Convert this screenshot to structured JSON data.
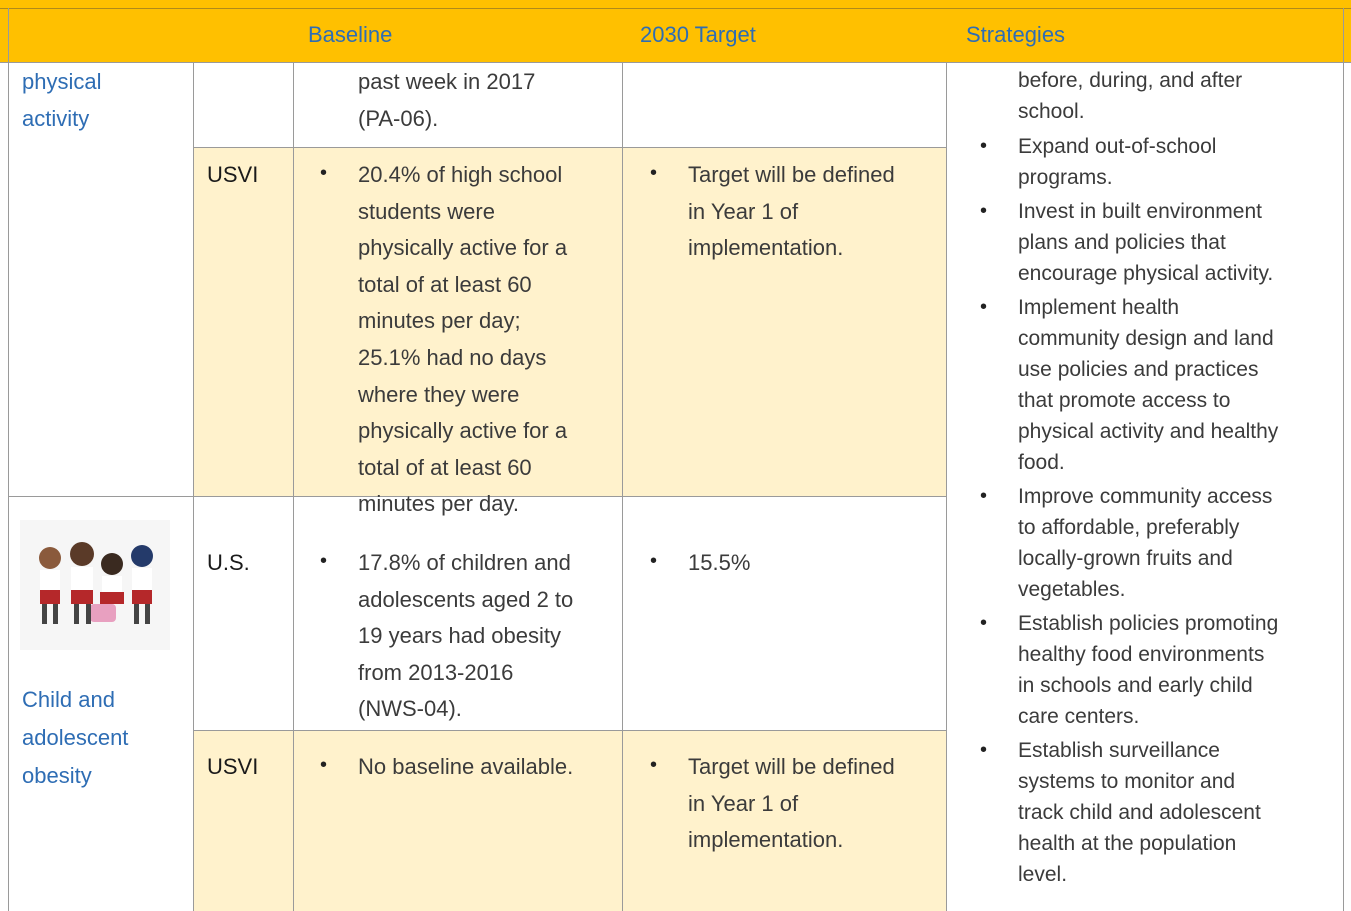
{
  "table": {
    "header": {
      "baseline": "Baseline",
      "target": "2030 Target",
      "strategies": "Strategies"
    },
    "sections": [
      {
        "topic": [
          "physical",
          "activity"
        ],
        "rows": [
          {
            "baseline_continued": [
              "past week in 2017",
              "(PA-06)."
            ]
          },
          {
            "region": "USVI",
            "baseline": [
              [
                "20.4% of high school",
                "students were",
                "physically active for a",
                "total of at least 60",
                "minutes per day;",
                "25.1% had no days",
                "where they were",
                "physically active for a",
                "total of at least 60",
                "minutes per day."
              ]
            ],
            "target": [
              [
                "Target will be defined",
                "in Year 1 of",
                "implementation."
              ]
            ]
          }
        ]
      },
      {
        "topic": [
          "Child and",
          "adolescent",
          "obesity"
        ],
        "rows": [
          {
            "region": "U.S.",
            "baseline": [
              [
                "17.8% of children and",
                "adolescents aged 2 to",
                "19 years had obesity",
                "from 2013-2016",
                "(NWS-04)."
              ]
            ],
            "target": [
              [
                "15.5%"
              ]
            ]
          },
          {
            "region": "USVI",
            "baseline": [
              [
                "No baseline available."
              ]
            ],
            "target": [
              [
                "Target will be defined",
                "in Year 1 of",
                "implementation."
              ]
            ]
          }
        ]
      }
    ],
    "strategies": {
      "continued": [
        "before, during, and after",
        "school."
      ],
      "items": [
        [
          "Expand out-of-school",
          "programs."
        ],
        [
          "Invest in built environment",
          "plans and policies that",
          "encourage physical activity."
        ],
        [
          "Implement health",
          "community design and land",
          "use policies and practices",
          "that promote access to",
          "physical activity and healthy",
          "food."
        ],
        [
          "Improve community access",
          "to affordable, preferably",
          "locally-grown fruits and",
          "vegetables."
        ],
        [
          "Establish policies promoting",
          "healthy food environments",
          "in schools and early child",
          "care centers."
        ],
        [
          "Establish surveillance",
          "systems to monitor and",
          "track child and adolescent",
          "health at the population",
          "level."
        ]
      ]
    }
  }
}
